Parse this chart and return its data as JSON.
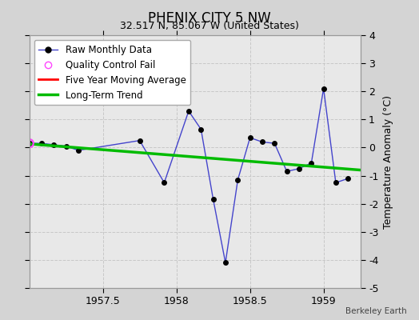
{
  "title": "PHENIX CITY 5 NW",
  "subtitle": "32.517 N, 85.067 W (United States)",
  "credit": "Berkeley Earth",
  "ylabel": "Temperature Anomaly (°C)",
  "ylim": [
    -5,
    4
  ],
  "xlim": [
    1957.0,
    1959.25
  ],
  "xticks": [
    1957.5,
    1958.0,
    1958.5,
    1959.0
  ],
  "xtick_labels": [
    "1957.5",
    "1958",
    "1958.5",
    "1959"
  ],
  "yticks": [
    -5,
    -4,
    -3,
    -2,
    -1,
    0,
    1,
    2,
    3,
    4
  ],
  "bg_color": "#d4d4d4",
  "plot_bg_color": "#e8e8e8",
  "raw_x": [
    1957.0,
    1957.083,
    1957.167,
    1957.25,
    1957.333,
    1957.75,
    1957.917,
    1958.083,
    1958.167,
    1958.25,
    1958.333,
    1958.417,
    1958.5,
    1958.583,
    1958.667,
    1958.75,
    1958.833,
    1958.917,
    1959.0,
    1959.083,
    1959.167
  ],
  "raw_y": [
    0.15,
    0.15,
    0.1,
    0.05,
    -0.1,
    0.25,
    -1.25,
    1.3,
    0.65,
    -1.85,
    -4.1,
    -1.15,
    0.35,
    0.2,
    0.15,
    -0.85,
    -0.75,
    -0.55,
    2.1,
    -1.25,
    -1.1
  ],
  "qc_fail_x": [
    1957.0
  ],
  "qc_fail_y": [
    0.15
  ],
  "trend_x": [
    1957.0,
    1959.25
  ],
  "trend_y": [
    0.13,
    -0.8
  ],
  "raw_line_color": "#4444cc",
  "marker_color": "#000000",
  "marker_size": 4,
  "qc_color": "#ff44ff",
  "moving_avg_color": "#ff0000",
  "trend_color": "#00bb00",
  "legend_bg": "#ffffff",
  "grid_color": "#c8c8c8"
}
